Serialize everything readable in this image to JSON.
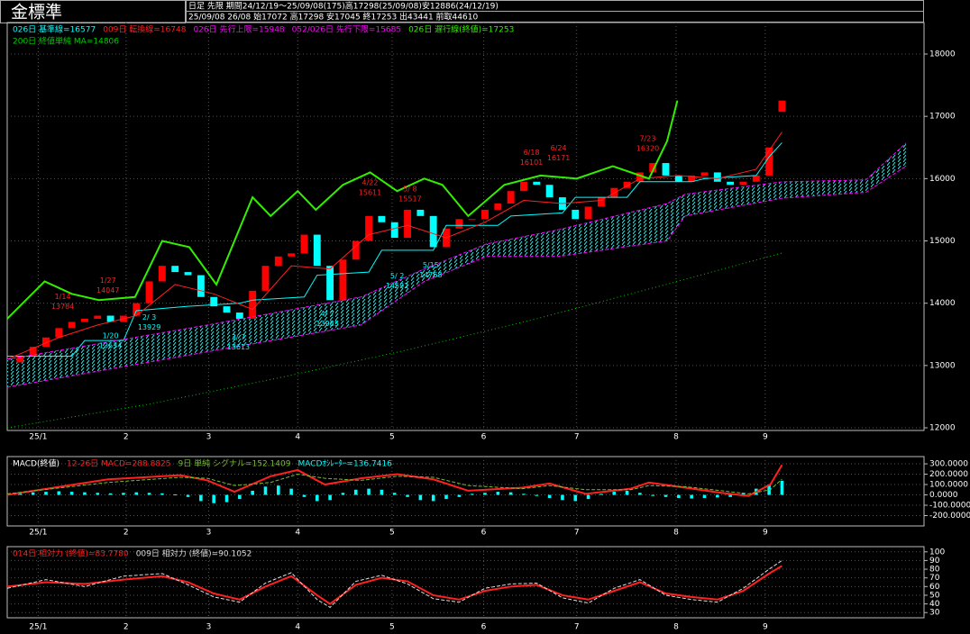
{
  "header": {
    "title": "金標準",
    "info1": "日足 先限 期間24/12/19～25/09/08(175)高17298(25/09/08)安12886(24/12/19)",
    "info2": "25/09/08 26/08 始17072 高17298 安17045 終17253 出43441 前取44610"
  },
  "chart_data": [
    {
      "type": "candlestick",
      "xlim": [
        -1,
        70
      ],
      "ylim": [
        11957,
        18506
      ],
      "yticks": [
        12000,
        13000,
        14000,
        15000,
        16000,
        17000,
        18000
      ],
      "xticks": [
        {
          "value": 1.4,
          "label": "25/1"
        },
        {
          "value": 8.2,
          "label": "2"
        },
        {
          "value": 14.6,
          "label": "3"
        },
        {
          "value": 21.5,
          "label": "4"
        },
        {
          "value": 28.8,
          "label": "5"
        },
        {
          "value": 35.9,
          "label": "6"
        },
        {
          "value": 43.1,
          "label": "7"
        },
        {
          "value": 50.8,
          "label": "8"
        },
        {
          "value": 57.7,
          "label": "9"
        }
      ],
      "grid": true,
      "up_color": "#ff0000",
      "down_color": "#00ffff",
      "open": [
        13050,
        13150,
        13300,
        13450,
        13600,
        13700,
        13750,
        13800,
        13700,
        13800,
        14000,
        14350,
        14600,
        14500,
        14450,
        14100,
        13950,
        13850,
        13750,
        14200,
        14600,
        14750,
        14800,
        15100,
        14600,
        14050,
        14700,
        15000,
        15400,
        15300,
        15050,
        15500,
        15400,
        14900,
        15200,
        15350,
        15350,
        15500,
        15600,
        15800,
        15950,
        15900,
        15700,
        15500,
        15350,
        15550,
        15700,
        15850,
        15950,
        16100,
        16250,
        16050,
        15950,
        16050,
        16100,
        15950,
        15900,
        15950,
        16050,
        17072
      ],
      "close": [
        13150,
        13300,
        13450,
        13600,
        13700,
        13750,
        13800,
        13700,
        13800,
        14000,
        14350,
        14600,
        14500,
        14450,
        14100,
        13950,
        13850,
        13750,
        14200,
        14600,
        14750,
        14800,
        15100,
        14600,
        14050,
        14700,
        15000,
        15400,
        15300,
        15050,
        15500,
        15400,
        14900,
        15200,
        15350,
        15350,
        15500,
        15600,
        15800,
        15950,
        15900,
        15700,
        15500,
        15350,
        15550,
        15700,
        15850,
        15950,
        16100,
        16250,
        16050,
        15950,
        16050,
        16100,
        15950,
        15900,
        15950,
        16050,
        16500,
        17253
      ],
      "lines": [
        {
          "name": "026日 基準線=16577",
          "color": "#00ffff",
          "style": "solid",
          "width": 1,
          "x": [
            -1,
            4,
            5,
            8,
            9,
            13,
            17,
            18,
            22,
            23,
            27,
            28,
            32,
            33,
            37,
            38,
            42,
            43,
            47,
            48,
            52,
            53,
            57,
            58,
            59
          ],
          "values": [
            13150,
            13150,
            13400,
            13400,
            13880,
            13950,
            14000,
            14050,
            14100,
            14450,
            14500,
            14850,
            14850,
            15250,
            15250,
            15400,
            15450,
            15700,
            15700,
            15950,
            15950,
            16000,
            16050,
            16350,
            16577
          ]
        },
        {
          "name": "009日 転換線=16748",
          "color": "#ff2020",
          "style": "solid",
          "width": 1,
          "x": [
            -1,
            3,
            6,
            9,
            12,
            15,
            18,
            21,
            24,
            27,
            30,
            33,
            36,
            39,
            42,
            45,
            48,
            51,
            54,
            57,
            59
          ],
          "values": [
            13100,
            13450,
            13650,
            13800,
            14300,
            14150,
            13900,
            14600,
            14550,
            15100,
            15250,
            15050,
            15300,
            15650,
            15600,
            15650,
            16000,
            16050,
            16000,
            16150,
            16748
          ]
        },
        {
          "name": "026日 先行上限=15948",
          "color": "#ff00ff",
          "style": "dashed",
          "width": 1,
          "cloud": true,
          "x": [
            -1,
            14.5,
            26.4,
            31.3,
            36.1,
            41.7,
            50.1,
            51.5,
            59,
            65.5,
            68.6
          ],
          "values": [
            13100,
            13650,
            14100,
            14550,
            14950,
            15180,
            15600,
            15750,
            15948,
            15980,
            16570
          ]
        },
        {
          "name": "052/026日 先行下限=15685",
          "color": "#ff00ff",
          "style": "dashed",
          "width": 1,
          "cloud": true,
          "x": [
            -1,
            14.5,
            26.4,
            31.3,
            36.1,
            41.7,
            50.1,
            51.5,
            59,
            65.5,
            68.6
          ],
          "values": [
            12650,
            13220,
            13650,
            14350,
            14750,
            14750,
            15000,
            15400,
            15685,
            15780,
            16200
          ]
        },
        {
          "name": "026日 遅行線(終値)=17253",
          "color": "#33ee00",
          "style": "solid",
          "width": 2,
          "x": [
            -1,
            1.9,
            4,
            6.1,
            8.9,
            11,
            13.1,
            15.2,
            18,
            19.4,
            21.5,
            22.9,
            25,
            27.1,
            29.2,
            31.3,
            32.7,
            34.7,
            37.5,
            40.3,
            43.1,
            45.9,
            48.7,
            50.1,
            50.9
          ],
          "values": [
            13750,
            14350,
            14150,
            14050,
            14100,
            15000,
            14900,
            14300,
            15700,
            15400,
            15800,
            15500,
            15900,
            16100,
            15800,
            16000,
            15900,
            15400,
            15900,
            16050,
            16000,
            16200,
            16000,
            16600,
            17253
          ]
        },
        {
          "name": "200日 終値単純 MA=14806",
          "color": "#00cc00",
          "style": "dotted",
          "width": 1,
          "x": [
            -1,
            10,
            20,
            30,
            40,
            50,
            59
          ],
          "values": [
            12000,
            12380,
            12800,
            13250,
            13750,
            14300,
            14806
          ]
        }
      ],
      "annotations": [
        {
          "date": "1/14",
          "price": 13784,
          "x": 3.3,
          "position": "above",
          "color": "#ff2020"
        },
        {
          "date": "1/27",
          "price": 14047,
          "x": 6.8,
          "position": "above",
          "color": "#ff2020"
        },
        {
          "date": "4/22",
          "price": 15611,
          "x": 27.1,
          "position": "above",
          "color": "#ff2020"
        },
        {
          "date": "5/ 8",
          "price": 15517,
          "x": 30.2,
          "position": "above",
          "color": "#ff2020"
        },
        {
          "date": "6/18",
          "price": 16101,
          "x": 39.6,
          "position": "above",
          "color": "#ff2020"
        },
        {
          "date": "6/24",
          "price": 16171,
          "x": 41.7,
          "position": "above",
          "color": "#ff2020"
        },
        {
          "date": "7/23",
          "price": 16320,
          "x": 48.6,
          "position": "above",
          "color": "#ff2020"
        },
        {
          "date": "1/20",
          "price": 13634,
          "x": 7.0,
          "position": "below",
          "color": "#00ffff"
        },
        {
          "date": "2/ 3",
          "price": 13929,
          "x": 10.0,
          "position": "below",
          "color": "#00ffff"
        },
        {
          "date": "3/ 7",
          "price": 13613,
          "x": 16.9,
          "position": "below",
          "color": "#00ffff"
        },
        {
          "date": "4/ 7",
          "price": 13985,
          "x": 23.8,
          "position": "below",
          "color": "#00ffff"
        },
        {
          "date": "5/ 2",
          "price": 14592,
          "x": 29.2,
          "position": "below",
          "color": "#00ffff"
        },
        {
          "date": "5/15",
          "price": 14768,
          "x": 31.8,
          "position": "below",
          "color": "#00ffff"
        }
      ]
    },
    {
      "type": "line",
      "title": "MACD(終値)",
      "xlim": [
        -1,
        70
      ],
      "ylim": [
        -300,
        370
      ],
      "yticks": [
        {
          "value": 300,
          "label": "300.0000"
        },
        {
          "value": 200,
          "label": "200.0000"
        },
        {
          "value": 100,
          "label": "100.0000"
        },
        {
          "value": 0,
          "label": "0.0000"
        },
        {
          "value": -100,
          "label": "-100.0000"
        },
        {
          "value": -200,
          "label": "-200.0000"
        }
      ],
      "xticks": [
        {
          "value": 1.4,
          "label": "25/1"
        },
        {
          "value": 8.2,
          "label": "2"
        },
        {
          "value": 14.6,
          "label": "3"
        },
        {
          "value": 21.5,
          "label": "4"
        },
        {
          "value": 28.8,
          "label": "5"
        },
        {
          "value": 35.9,
          "label": "6"
        },
        {
          "value": 43.1,
          "label": "7"
        },
        {
          "value": 50.8,
          "label": "8"
        },
        {
          "value": 57.7,
          "label": "9"
        }
      ],
      "grid": true,
      "lines": [
        {
          "name": "12-26日 MACD=288.8825",
          "color": "#ff2020",
          "style": "solid",
          "width": 2,
          "x": [
            -1,
            6.8,
            12.4,
            14.5,
            16.6,
            19.4,
            21.5,
            23.6,
            26.4,
            29.2,
            32,
            34.7,
            38.9,
            41,
            43.8,
            47.3,
            48.7,
            51.5,
            54.3,
            56.4,
            58.1,
            59
          ],
          "values": [
            0,
            150,
            190,
            140,
            30,
            180,
            240,
            100,
            160,
            200,
            150,
            40,
            70,
            110,
            10,
            60,
            120,
            70,
            20,
            -10,
            100,
            288.8825
          ]
        },
        {
          "name": "9日 単純 シグナル=152.1409",
          "color": "#77bb33",
          "style": "dashed",
          "width": 1,
          "x": [
            -1,
            6.8,
            12.4,
            14.5,
            16.6,
            19.4,
            21.5,
            23.6,
            26.4,
            29.2,
            32,
            34.7,
            38.9,
            41,
            43.8,
            47.3,
            48.7,
            51.5,
            54.3,
            56.4,
            58.1,
            59
          ],
          "values": [
            10,
            120,
            170,
            160,
            90,
            120,
            200,
            160,
            140,
            180,
            170,
            90,
            60,
            90,
            50,
            50,
            90,
            80,
            40,
            10,
            50,
            152.1409
          ]
        }
      ],
      "bars": {
        "name": "MACDｵｼﾚｰﾀｰ=136.7416",
        "color": "#00ffff",
        "values": [
          20,
          25,
          30,
          35,
          30,
          25,
          20,
          15,
          20,
          25,
          20,
          15,
          5,
          -20,
          -60,
          -80,
          -70,
          -40,
          40,
          80,
          90,
          60,
          -20,
          -60,
          -50,
          20,
          50,
          60,
          50,
          20,
          -20,
          -50,
          -60,
          -40,
          -20,
          10,
          20,
          30,
          25,
          10,
          -10,
          -30,
          -50,
          -60,
          -40,
          10,
          30,
          40,
          20,
          -10,
          -20,
          -30,
          -35,
          -30,
          -25,
          -20,
          20,
          60,
          100,
          136.7416
        ]
      }
    },
    {
      "type": "line",
      "xlim": [
        -1,
        70
      ],
      "ylim": [
        24,
        106
      ],
      "yticks": [
        100,
        90,
        80,
        70,
        60,
        50,
        40,
        30
      ],
      "xticks": [
        {
          "value": 1.4,
          "label": "25/1"
        },
        {
          "value": 8.2,
          "label": "2"
        },
        {
          "value": 14.6,
          "label": "3"
        },
        {
          "value": 21.5,
          "label": "4"
        },
        {
          "value": 28.8,
          "label": "5"
        },
        {
          "value": 35.9,
          "label": "6"
        },
        {
          "value": 43.1,
          "label": "7"
        },
        {
          "value": 50.8,
          "label": "8"
        },
        {
          "value": 57.7,
          "label": "9"
        }
      ],
      "grid": true,
      "lines": [
        {
          "name": "014日 相対力 (終値)=83.7780",
          "color": "#ff2020",
          "style": "solid",
          "width": 2,
          "x": [
            -1,
            2,
            5,
            8,
            11,
            13,
            15,
            17,
            19,
            21,
            23,
            24,
            26,
            28,
            30,
            32,
            34,
            36,
            38,
            40,
            42,
            44,
            46,
            48,
            50,
            52,
            54,
            56,
            58,
            59
          ],
          "values": [
            60,
            65,
            63,
            68,
            72,
            65,
            52,
            45,
            60,
            72,
            50,
            40,
            62,
            70,
            66,
            50,
            45,
            55,
            60,
            62,
            50,
            45,
            55,
            65,
            52,
            48,
            45,
            55,
            75,
            83.778
          ]
        },
        {
          "name": "009日 相対力 (終値)=90.1052",
          "color": "#dddddd",
          "style": "dashed",
          "width": 1,
          "x": [
            -1,
            2,
            5,
            8,
            11,
            13,
            15,
            17,
            19,
            21,
            23,
            24,
            26,
            28,
            30,
            32,
            34,
            36,
            38,
            40,
            42,
            44,
            46,
            48,
            50,
            52,
            54,
            56,
            58,
            59
          ],
          "values": [
            58,
            68,
            60,
            72,
            75,
            62,
            48,
            42,
            64,
            76,
            45,
            36,
            66,
            73,
            63,
            46,
            42,
            58,
            63,
            64,
            47,
            41,
            58,
            68,
            50,
            45,
            42,
            58,
            80,
            90.1052
          ]
        }
      ]
    }
  ]
}
